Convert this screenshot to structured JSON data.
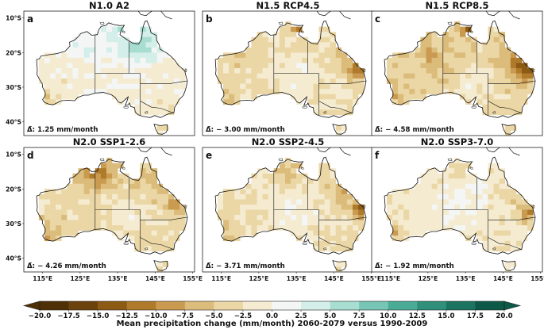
{
  "panels": [
    {
      "letter": "a",
      "title": "N1.0 A2",
      "mean_prefix": "Δ̄:",
      "mean_value": "1.25 mm/month",
      "pattern": "a"
    },
    {
      "letter": "b",
      "title": "N1.5 RCP4.5",
      "mean_prefix": "Δ̄:",
      "mean_value": "− 3.00 mm/month",
      "pattern": "b"
    },
    {
      "letter": "c",
      "title": "N1.5 RCP8.5",
      "mean_prefix": "Δ̄:",
      "mean_value": "− 4.58 mm/month",
      "pattern": "c"
    },
    {
      "letter": "d",
      "title": "N2.0 SSP1-2.6",
      "mean_prefix": "Δ̄:",
      "mean_value": "− 4.26 mm/month",
      "pattern": "d"
    },
    {
      "letter": "e",
      "title": "N2.0 SSP2-4.5",
      "mean_prefix": "Δ̄:",
      "mean_value": "− 3.71 mm/month",
      "pattern": "e"
    },
    {
      "letter": "f",
      "title": "N2.0 SSP3-7.0",
      "mean_prefix": "Δ̄:",
      "mean_value": "− 1.92 mm/month",
      "pattern": "f"
    }
  ],
  "lat_labels": [
    "10°S",
    "20°S",
    "30°S",
    "40°S"
  ],
  "lon_labels": [
    "115°E",
    "125°E",
    "135°E",
    "145°E",
    "155°E"
  ],
  "colorbar": {
    "label": "Mean precipitation change (mm/month) 2060-2079 versus 1990-2009",
    "tick_labels": [
      "−20.0",
      "−17.5",
      "−15.0",
      "−12.5",
      "−10.0",
      "−7.5",
      "−5.0",
      "−2.5",
      "0.0",
      "2.5",
      "5.0",
      "7.5",
      "10.0",
      "12.5",
      "15.0",
      "17.5",
      "20.0"
    ],
    "ticks": [
      -20,
      -17.5,
      -15,
      -12.5,
      -10,
      -7.5,
      -5,
      -2.5,
      0,
      2.5,
      5,
      7.5,
      10,
      12.5,
      15,
      17.5,
      20
    ],
    "colors": [
      "#4f2f06",
      "#6b420c",
      "#8d5a14",
      "#b07a2b",
      "#c99a4f",
      "#dcbc7b",
      "#ebd7a5",
      "#f5ebd0",
      "#f3f6f5",
      "#d4eee9",
      "#a8ddd1",
      "#77c6b5",
      "#4aab96",
      "#2f8f7a",
      "#1b7460",
      "#0b5946"
    ]
  }
}
